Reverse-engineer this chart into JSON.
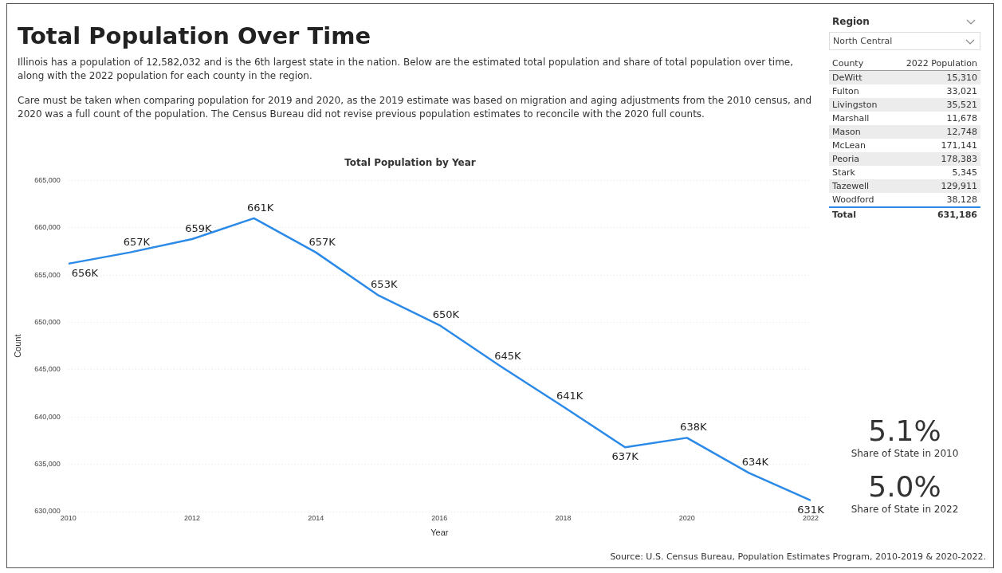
{
  "chart_data": [
    {
      "type": "other",
      "title": "Total Population Over Time",
      "annotations": [
        "Illinois has a population of 12,582,032 and is the 6th largest state in the nation.    Below are the estimated total population and share of total population over time, along with the 2022 population for each county in the region.",
        "Care must be taken when comparing population for 2019 and 2020, as the 2019 estimate was based on migration and aging adjustments from the 2010 census, and 2020 was a full count of the population.  The Census Bureau did not revise previous population estimates to reconcile with the 2020 full counts."
      ]
    },
    {
      "type": "other",
      "title": "Region",
      "subtitle": "North Central",
      "xlabel": "County",
      "ylabel": "2022 Population",
      "categories": [
        "DeWitt",
        "Fulton",
        "Livingston",
        "Marshall",
        "Mason",
        "McLean",
        "Peoria",
        "Stark",
        "Tazewell",
        "Woodford"
      ],
      "value_labels": [
        "15,310",
        "33,021",
        "35,521",
        "11,678",
        "12,748",
        "171,141",
        "178,383",
        "5,345",
        "129,911",
        "38,128"
      ],
      "annotations": [
        "Total",
        "631,186"
      ]
    },
    {
      "type": "line",
      "title": "Total Population by Year",
      "xlabel": "Year",
      "ylabel": "Count",
      "color": "#2b8ae8",
      "grid": "y",
      "x": [
        2010,
        2011,
        2012,
        2013,
        2014,
        2015,
        2016,
        2017,
        2018,
        2019,
        2020,
        2021,
        2022
      ],
      "values": [
        656200,
        657400,
        658800,
        661000,
        657400,
        652900,
        649700,
        645300,
        641100,
        636800,
        637800,
        634100,
        631186
      ],
      "value_labels": [
        "656K",
        "657K",
        "659K",
        "661K",
        "657K",
        "653K",
        "650K",
        "645K",
        "641K",
        "637K",
        "638K",
        "634K",
        "631K"
      ],
      "xlim": [
        2010,
        2022
      ],
      "xticks": [
        2010,
        2012,
        2014,
        2016,
        2018,
        2020,
        2022
      ],
      "ylim": [
        630000,
        665000
      ],
      "yticks": [
        {
          "value": 630000,
          "label": "630,000"
        },
        {
          "value": 635000,
          "label": "635,000"
        },
        {
          "value": 640000,
          "label": "640,000"
        },
        {
          "value": 645000,
          "label": "645,000"
        },
        {
          "value": 650000,
          "label": "650,000"
        },
        {
          "value": 655000,
          "label": "655,000"
        },
        {
          "value": 660000,
          "label": "660,000"
        },
        {
          "value": 665000,
          "label": "665,000"
        }
      ],
      "annotations": [
        "Source: U.S. Census Bureau, Population Estimates Program, 2010-2019 & 2020-2022."
      ]
    },
    {
      "type": "other",
      "annotations": [
        "5.1%",
        "Share of State in 2010",
        "5.0%",
        "Share of State in 2022"
      ]
    }
  ]
}
